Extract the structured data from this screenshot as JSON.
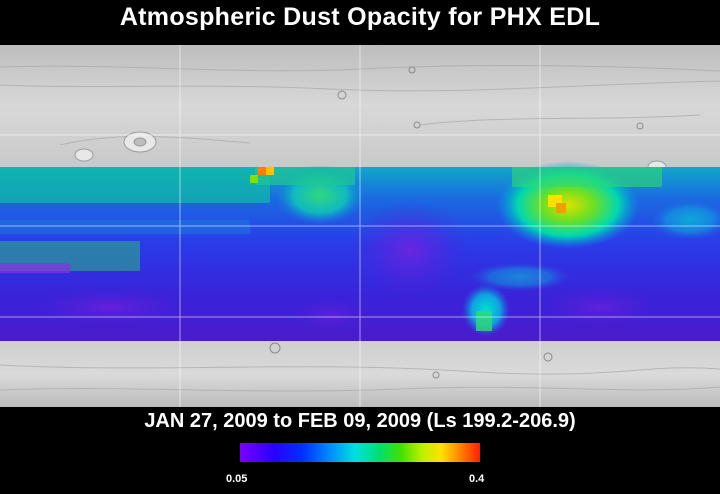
{
  "title": "Atmospheric Dust Opacity for PHX EDL",
  "date_range": "JAN 27, 2009 to FEB 09, 2009 (Ls 199.2-206.9)",
  "colorbar": {
    "min_label": "0.05",
    "max_label": "0.4",
    "colors": [
      "#7a00ff",
      "#2a00ff",
      "#0030ff",
      "#0090ff",
      "#00e0e0",
      "#00e070",
      "#40e000",
      "#c0f000",
      "#ffe000",
      "#ff8000",
      "#ff2000"
    ]
  },
  "colors": {
    "background": "#000000",
    "text": "#ffffff",
    "terrain": "#c8c8c8",
    "gridline": "#ffffff"
  }
}
